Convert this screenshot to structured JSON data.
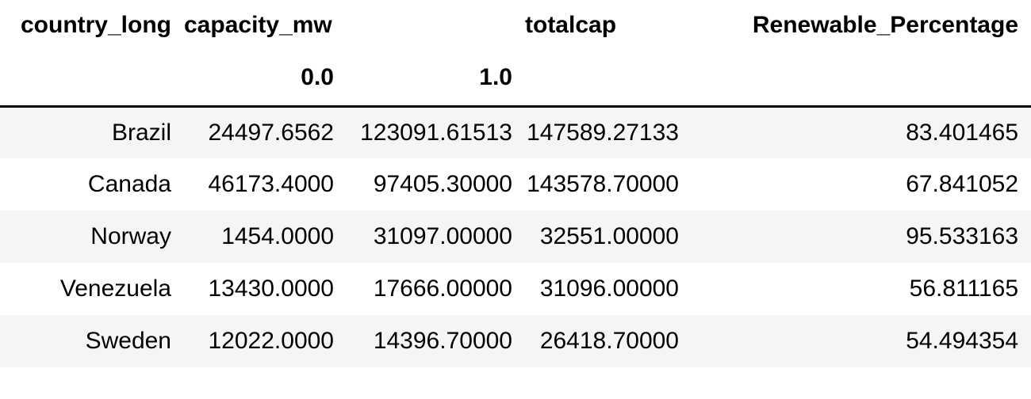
{
  "columns": {
    "level0": [
      "country_long",
      "capacity_mw",
      "",
      "totalcap",
      "Renewable_Percentage"
    ],
    "level1": [
      "",
      "0.0",
      "1.0",
      "",
      ""
    ]
  },
  "rows": [
    {
      "country": "Brazil",
      "cap0": "24497.6562",
      "cap1": "123091.61513",
      "totalcap": "147589.27133",
      "renewable": "83.401465"
    },
    {
      "country": "Canada",
      "cap0": "46173.4000",
      "cap1": "97405.30000",
      "totalcap": "143578.70000",
      "renewable": "67.841052"
    },
    {
      "country": "Norway",
      "cap0": "1454.0000",
      "cap1": "31097.00000",
      "totalcap": "32551.00000",
      "renewable": "95.533163"
    },
    {
      "country": "Venezuela",
      "cap0": "13430.0000",
      "cap1": "17666.00000",
      "totalcap": "31096.00000",
      "renewable": "56.811165"
    },
    {
      "country": "Sweden",
      "cap0": "12022.0000",
      "cap1": "14396.70000",
      "totalcap": "26418.70000",
      "renewable": "54.494354"
    }
  ]
}
